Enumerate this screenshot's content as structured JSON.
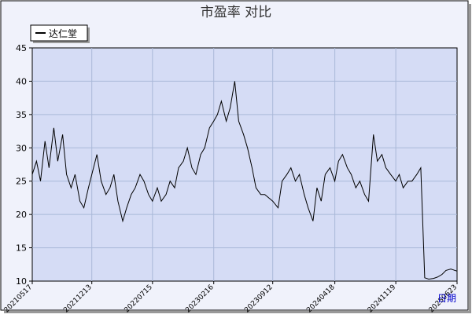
{
  "chart_data": {
    "type": "line",
    "title": "市盈率  对比",
    "xlabel": "日期",
    "ylabel": "",
    "ylim": [
      10,
      45
    ],
    "yticks": [
      10,
      15,
      20,
      25,
      30,
      35,
      40,
      45
    ],
    "xticks": [
      "20210517",
      "20211213",
      "20220715",
      "20230216",
      "20230912",
      "20240418",
      "20241119",
      "20250623"
    ],
    "grid": true,
    "legend_position": "top-left",
    "series": [
      {
        "name": "达仁堂",
        "color": "#000000",
        "x": [
          "20210517",
          "20210601",
          "20210615",
          "20210701",
          "20210715",
          "20210801",
          "20210815",
          "20210901",
          "20210915",
          "20211001",
          "20211015",
          "20211101",
          "20211115",
          "20211201",
          "20211213",
          "20211231",
          "20220115",
          "20220201",
          "20220215",
          "20220301",
          "20220315",
          "20220401",
          "20220415",
          "20220501",
          "20220515",
          "20220601",
          "20220615",
          "20220701",
          "20220715",
          "20220801",
          "20220815",
          "20220901",
          "20220915",
          "20221001",
          "20221015",
          "20221101",
          "20221115",
          "20221201",
          "20221215",
          "20230101",
          "20230115",
          "20230201",
          "20230216",
          "20230301",
          "20230315",
          "20230401",
          "20230415",
          "20230501",
          "20230515",
          "20230601",
          "20230615",
          "20230701",
          "20230715",
          "20230801",
          "20230815",
          "20230912",
          "20231001",
          "20231015",
          "20231101",
          "20231115",
          "20231201",
          "20231215",
          "20240101",
          "20240115",
          "20240201",
          "20240215",
          "20240301",
          "20240315",
          "20240401",
          "20240418",
          "20240501",
          "20240515",
          "20240601",
          "20240615",
          "20240701",
          "20240715",
          "20240801",
          "20240815",
          "20240901",
          "20240915",
          "20241001",
          "20241015",
          "20241101",
          "20241119",
          "20241201",
          "20241215",
          "20250101",
          "20250115",
          "20250201",
          "20250215",
          "20250301",
          "20250315",
          "20250401",
          "20250415",
          "20250501",
          "20250515",
          "20250601",
          "20250623"
        ],
        "values": [
          26,
          28,
          25,
          31,
          27,
          33,
          28,
          32,
          26,
          24,
          26,
          22,
          21,
          24,
          26,
          29,
          25,
          23,
          24,
          26,
          22,
          19,
          21,
          23,
          24,
          26,
          25,
          23,
          22,
          24,
          22,
          23,
          25,
          24,
          27,
          28,
          30,
          27,
          26,
          29,
          30,
          33,
          34,
          35,
          37,
          34,
          36,
          40,
          34,
          32,
          30,
          27,
          24,
          23,
          23,
          22,
          21,
          25,
          26,
          27,
          25,
          26,
          23,
          21,
          19,
          24,
          22,
          26,
          27,
          25,
          28,
          29,
          27,
          26,
          24,
          25,
          23,
          22,
          32,
          28,
          29,
          27,
          26,
          25,
          26,
          24,
          25,
          25,
          26,
          27,
          10.5,
          10.3,
          10.4,
          10.6,
          11,
          11.6,
          11.8,
          11.5
        ]
      }
    ]
  }
}
